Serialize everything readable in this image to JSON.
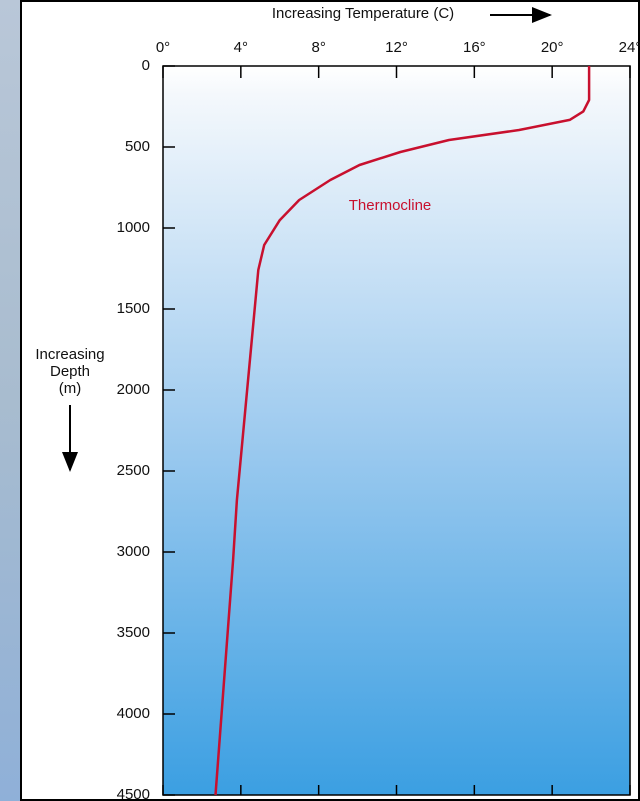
{
  "chart_data": {
    "type": "line",
    "title": "Increasing Temperature (C)",
    "ylabel": [
      "Increasing",
      "Depth",
      "(m)"
    ],
    "annotation": "Thermocline",
    "x": [
      21.9,
      21.9,
      21.6,
      20.9,
      18.3,
      14.7,
      12.2,
      10.1,
      8.6,
      7.0,
      6.0,
      5.2,
      4.9,
      3.8,
      3.6,
      2.7
    ],
    "values": [
      0,
      210,
      280,
      333,
      395,
      457,
      531,
      611,
      704,
      827,
      951,
      1105,
      1259,
      2679,
      3049,
      4500
    ],
    "color": "#c8102e",
    "xlim": [
      0,
      24
    ],
    "xticks": [
      {
        "value": 0,
        "label": "0°"
      },
      {
        "value": 4,
        "label": "4°"
      },
      {
        "value": 8,
        "label": "8°"
      },
      {
        "value": 12,
        "label": "12°"
      },
      {
        "value": 16,
        "label": "16°"
      },
      {
        "value": 20,
        "label": "20°"
      },
      {
        "value": 24,
        "label": "24°"
      }
    ],
    "ylim": [
      0,
      4500
    ],
    "yticks": [
      0,
      500,
      1000,
      1500,
      2000,
      2500,
      3000,
      3500,
      4000,
      4500
    ],
    "y_inverted": true
  }
}
